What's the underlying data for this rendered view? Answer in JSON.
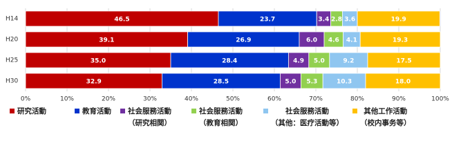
{
  "chart_data": {
    "type": "stacked-bar-horizontal",
    "categories": [
      "H14",
      "H20",
      "H25",
      "H30"
    ],
    "series": [
      {
        "name": "研究活動",
        "color": "#c00000",
        "values": [
          46.5,
          39.1,
          35.0,
          32.9
        ],
        "value_labels": [
          "46.5",
          "39.1",
          "35.0",
          "32.9"
        ]
      },
      {
        "name": "教育活動",
        "color": "#0033cc",
        "values": [
          23.7,
          26.9,
          28.4,
          28.5
        ],
        "value_labels": [
          "23.7",
          "26.9",
          "28.4",
          "28.5"
        ]
      },
      {
        "name": "社会服務活動\n（研究相関）",
        "color": "#7030a0",
        "values": [
          3.4,
          6.0,
          4.9,
          5.0
        ],
        "value_labels": [
          "3.4",
          "6.0",
          "4.9",
          "5.0"
        ]
      },
      {
        "name": "社会服務活動\n（教育相関）",
        "color": "#92d050",
        "values": [
          2.8,
          4.6,
          5.0,
          5.3
        ],
        "value_labels": [
          "2.8",
          "4.6",
          "5.0",
          "5.3"
        ]
      },
      {
        "name": "社会服務活動\n（其他：医疗活動等）",
        "color": "#8fc6f0",
        "values": [
          3.6,
          4.1,
          9.2,
          10.3
        ],
        "value_labels": [
          "3.6",
          "4.1",
          "9.2",
          "10.3"
        ]
      },
      {
        "name": "其他工作活動\n（校内事务等）",
        "color": "#ffc000",
        "values": [
          19.9,
          19.3,
          17.5,
          18.0
        ],
        "value_labels": [
          "19.9",
          "19.3",
          "17.5",
          "18.0"
        ]
      }
    ],
    "xlim": [
      0,
      100
    ],
    "xticks": [
      {
        "value": 0,
        "label": "0%"
      },
      {
        "value": 10,
        "label": "10%"
      },
      {
        "value": 20,
        "label": "20%"
      },
      {
        "value": 30,
        "label": "30%"
      },
      {
        "value": 40,
        "label": "40%"
      },
      {
        "value": 50,
        "label": "50%"
      },
      {
        "value": 60,
        "label": "60%"
      },
      {
        "value": 70,
        "label": "70%"
      },
      {
        "value": 80,
        "label": "80%"
      },
      {
        "value": 90,
        "label": "90%"
      },
      {
        "value": 100,
        "label": "100%"
      }
    ],
    "grid": true
  }
}
